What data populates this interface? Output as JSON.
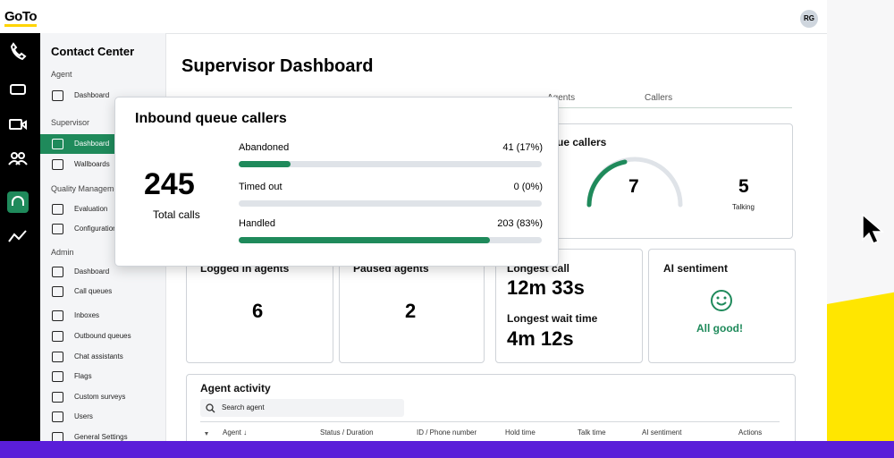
{
  "header": {
    "logo": "GoTo",
    "avatar": "RG"
  },
  "sidebar": {
    "title": "Contact Center",
    "sections": [
      {
        "heading": "Agent",
        "items": [
          "Dashboard"
        ]
      },
      {
        "heading": "Supervisor",
        "items": [
          "Dashboard",
          "Wallboards"
        ]
      },
      {
        "heading": "Quality Management",
        "items": [
          "Evaluation",
          "Configuration"
        ]
      },
      {
        "heading": "Admin",
        "items": [
          "Dashboard",
          "Call queues",
          "Inboxes",
          "Outbound queues",
          "Chat assistants",
          "Flags",
          "Custom surveys",
          "Users",
          "General Settings"
        ]
      }
    ]
  },
  "main": {
    "title": "Supervisor Dashboard",
    "tabs": [
      "Agents",
      "Callers"
    ],
    "queue_card": {
      "title": "Inbound queue callers",
      "waiting": "7",
      "talking": "5",
      "talking_label": "Talking"
    },
    "agents_cards": [
      {
        "title": "Logged in agents",
        "value": "6"
      },
      {
        "title": "Paused agents",
        "value": "2"
      }
    ],
    "times_card": {
      "longest_call_label": "Longest call",
      "longest_call": "12m 33s",
      "longest_wait_label": "Longest wait time",
      "longest_wait": "4m 12s"
    },
    "sentiment_card": {
      "title": "AI sentiment",
      "status": "All good!"
    },
    "activity": {
      "title": "Agent activity",
      "search_placeholder": "Search agent",
      "columns": [
        "Agent ↓",
        "Status / Duration",
        "ID / Phone number",
        "Hold time",
        "Talk time",
        "AI sentiment",
        "Actions"
      ]
    }
  },
  "popup": {
    "title": "Inbound queue callers",
    "total": "245",
    "total_label": "Total calls",
    "rows": [
      {
        "label": "Abandoned",
        "value_label": "41 (17%)",
        "percent": 17
      },
      {
        "label": "Timed out",
        "value_label": "0 (0%)",
        "percent": 0
      },
      {
        "label": "Handled",
        "value_label": "203 (83%)",
        "percent": 83
      }
    ]
  }
}
